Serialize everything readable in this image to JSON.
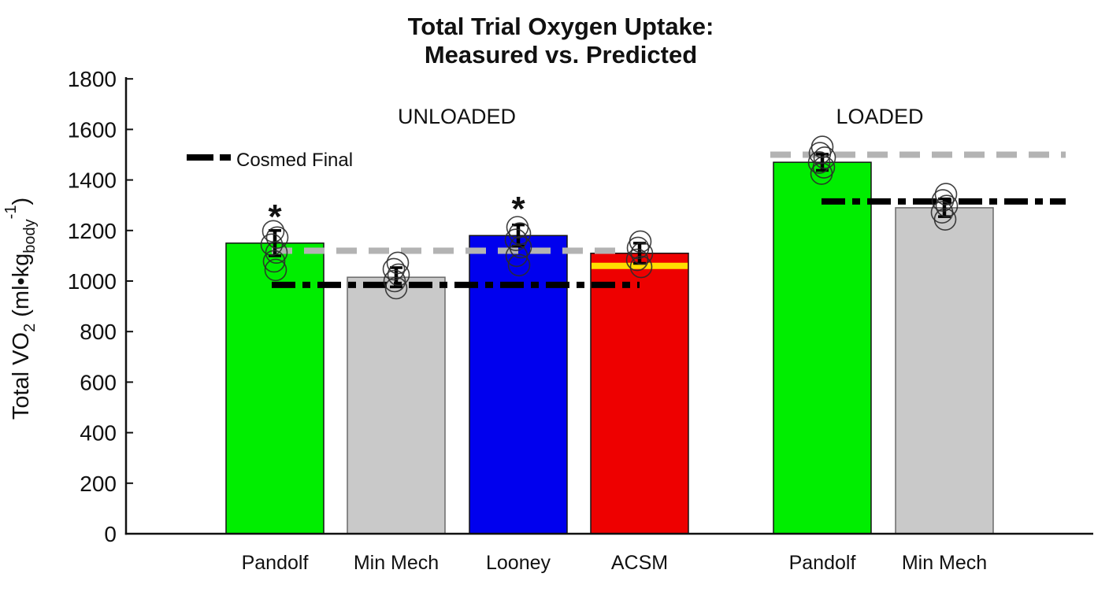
{
  "chart_data": {
    "type": "bar",
    "title_line1": "Total Trial Oxygen Uptake:",
    "title_line2": "Measured vs. Predicted",
    "legend_label": "Cosmed Final",
    "legend_position": "upper-left-inside",
    "significance_marker": "*",
    "ylabel_plain": "Total VO2 (ml•kg_body^-1)",
    "ylim": [
      0,
      1800
    ],
    "ytick_step": 200,
    "grid": false,
    "colors": {
      "dashed_gray_line": "#B3B3B3",
      "cosmed_final_line": "#000000",
      "pandolf_bar": "#00EE00",
      "min_mech_bar": "#C9C9C9",
      "looney_bar": "#0000EE",
      "acsm_bar": "#EE0000",
      "acsm_stripe": "#FFDF00"
    },
    "groups": [
      {
        "label": "UNLOADED",
        "reference_lines": {
          "dashed_gray_value": 1120,
          "cosmed_final_value": 985
        },
        "bars": [
          {
            "category": "Pandolf",
            "value": 1150,
            "color": "#00EE00",
            "border": "#141414",
            "significant": true,
            "err": 50,
            "points": [
              1197,
              1172,
              1144,
              1113,
              1078,
              1044
            ],
            "jitter": [
              -2,
              3,
              -4,
              2,
              -1,
              1
            ]
          },
          {
            "category": "Min Mech",
            "value": 1015,
            "color": "#C9C9C9",
            "border": "#6A6A6A",
            "significant": false,
            "err": 38,
            "points": [
              1072,
              1047,
              1025,
              1000,
              972
            ],
            "jitter": [
              2,
              -3,
              3,
              -2,
              0
            ]
          },
          {
            "category": "Looney",
            "value": 1180,
            "color": "#0000EE",
            "border": "#141414",
            "significant": true,
            "err": 42,
            "points": [
              1213,
              1188,
              1163,
              1134,
              1100,
              1063
            ],
            "jitter": [
              -1,
              2,
              -3,
              3,
              -2,
              1
            ]
          },
          {
            "category": "ACSM",
            "value": 1110,
            "color": "#EE0000",
            "border": "#141414",
            "significant": false,
            "err": 40,
            "stripe_value": 1060,
            "stripe_color": "#FFDF00",
            "points": [
              1156,
              1131,
              1109,
              1084,
              1056
            ],
            "jitter": [
              1,
              -2,
              3,
              -3,
              2
            ]
          }
        ]
      },
      {
        "label": "LOADED",
        "reference_lines": {
          "dashed_gray_value": 1500,
          "cosmed_final_value": 1315
        },
        "bars": [
          {
            "category": "Pandolf",
            "value": 1470,
            "color": "#00EE00",
            "border": "#141414",
            "significant": false,
            "err": 32,
            "points": [
              1531,
              1506,
              1488,
              1469,
              1450,
              1425
            ],
            "jitter": [
              0,
              -3,
              3,
              -4,
              2,
              -1
            ]
          },
          {
            "category": "Min Mech",
            "value": 1290,
            "color": "#C9C9C9",
            "border": "#6A6A6A",
            "significant": false,
            "err": 35,
            "points": [
              1344,
              1319,
              1297,
              1272,
              1244
            ],
            "jitter": [
              2,
              -2,
              3,
              -3,
              1
            ]
          }
        ]
      }
    ]
  },
  "y_axis": {
    "label_parts": [
      {
        "t": "Total VO"
      },
      {
        "t": "2",
        "s": "sub"
      },
      {
        "t": " (ml•kg"
      },
      {
        "t": "body",
        "s": "sub"
      },
      {
        "t": "-1",
        "s": "sup"
      },
      {
        "t": ")"
      }
    ],
    "tick_labels": [
      "0",
      "200",
      "400",
      "600",
      "800",
      "1000",
      "1200",
      "1400",
      "1600",
      "1800"
    ]
  }
}
